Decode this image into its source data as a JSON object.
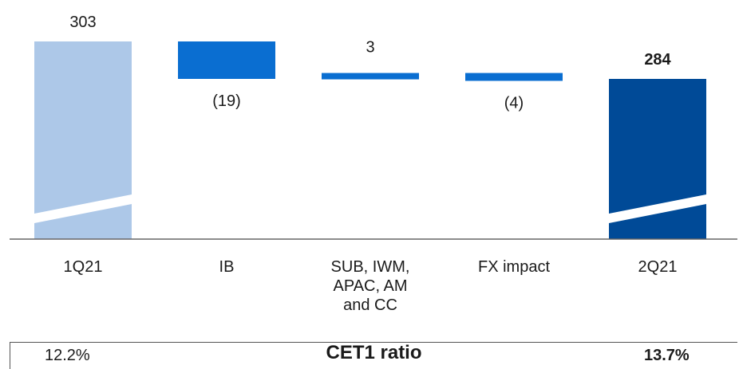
{
  "chart_data": {
    "type": "waterfall",
    "categories": [
      "1Q21",
      "IB",
      "SUB, IWM,\nAPAC, AM\nand CC",
      "FX impact",
      "2Q21"
    ],
    "values": [
      303,
      -19,
      3,
      -4,
      284
    ],
    "value_labels": [
      "303",
      "(19)",
      "3",
      "(4)",
      "284"
    ],
    "bar_kinds": [
      "total",
      "delta",
      "delta",
      "delta",
      "total"
    ],
    "colors": [
      "#adc8e8",
      "#0a6ed1",
      "#0a6ed1",
      "#0a6ed1",
      "#004a97"
    ],
    "axis_break": true,
    "grid": false
  },
  "ratio": {
    "label": "CET1 ratio",
    "start": "12.2%",
    "end": "13.7%"
  }
}
